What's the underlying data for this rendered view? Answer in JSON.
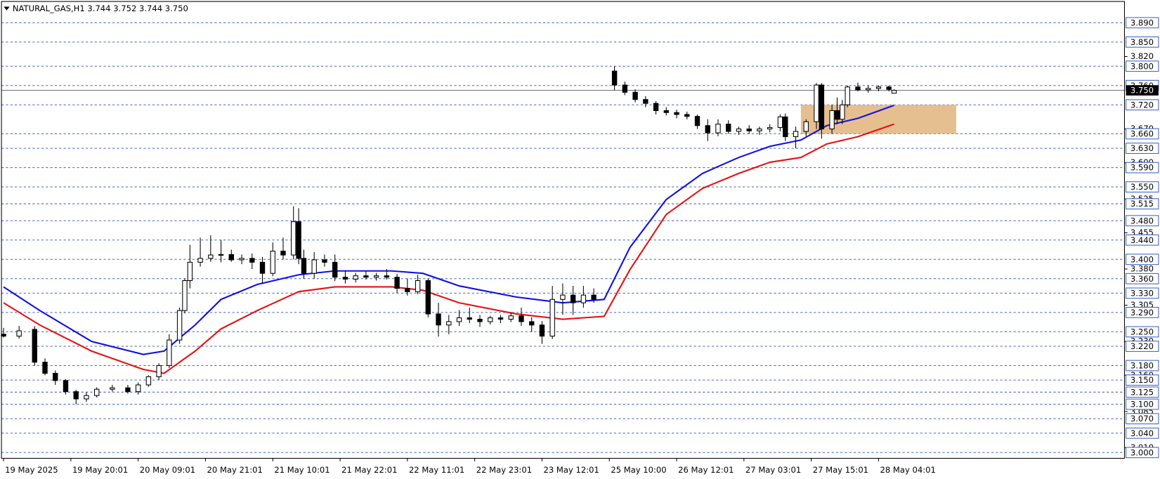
{
  "chart_data": {
    "type": "candlestick",
    "title": "NATURAL_GAS,H1  3.744 3.752 3.744 3.750",
    "xlim": [
      -0.4,
      216.5
    ],
    "ylim": [
      2.988,
      3.934
    ],
    "xticks": [
      {
        "value": 0,
        "label": "19 May 2025"
      },
      {
        "value": 13,
        "label": "19 May 20:01"
      },
      {
        "value": 26,
        "label": "20 May 09:01"
      },
      {
        "value": 39,
        "label": "20 May 21:01"
      },
      {
        "value": 52,
        "label": "21 May 10:01"
      },
      {
        "value": 65,
        "label": "21 May 22:01"
      },
      {
        "value": 78,
        "label": "22 May 11:01"
      },
      {
        "value": 91,
        "label": "22 May 23:01"
      },
      {
        "value": 104,
        "label": "23 May 12:01"
      },
      {
        "value": 117,
        "label": "25 May 10:00"
      },
      {
        "value": 130,
        "label": "26 May 12:01"
      },
      {
        "value": 143,
        "label": "27 May 03:01"
      },
      {
        "value": 156,
        "label": "27 May 15:01"
      },
      {
        "value": 169,
        "label": "28 May 04:01"
      }
    ],
    "yticks": [
      {
        "value": 3.82,
        "label": "3.820"
      },
      {
        "value": 3.67,
        "label": "3.670"
      },
      {
        "value": 3.6,
        "label": "3.600"
      },
      {
        "value": 3.525,
        "label": "3.525"
      },
      {
        "value": 3.455,
        "label": "3.455"
      },
      {
        "value": 3.38,
        "label": "3.380"
      },
      {
        "value": 3.305,
        "label": "3.305"
      },
      {
        "value": 3.23,
        "label": "3.230"
      },
      {
        "value": 3.16,
        "label": "3.160"
      },
      {
        "value": 3.085,
        "label": "3.085"
      },
      {
        "value": 3.01,
        "label": "3.010"
      }
    ],
    "levels": [
      {
        "value": 3.89,
        "label": "3.890"
      },
      {
        "value": 3.85,
        "label": "3.850"
      },
      {
        "value": 3.8,
        "label": "3.800"
      },
      {
        "value": 3.76,
        "label": "3.760"
      },
      {
        "value": 3.72,
        "label": "3.720"
      },
      {
        "value": 3.66,
        "label": "3.660"
      },
      {
        "value": 3.63,
        "label": "3.630"
      },
      {
        "value": 3.59,
        "label": "3.590"
      },
      {
        "value": 3.55,
        "label": "3.550"
      },
      {
        "value": 3.515,
        "label": "3.515"
      },
      {
        "value": 3.48,
        "label": "3.480"
      },
      {
        "value": 3.44,
        "label": "3.440"
      },
      {
        "value": 3.4,
        "label": "3.400"
      },
      {
        "value": 3.36,
        "label": "3.360"
      },
      {
        "value": 3.33,
        "label": "3.330"
      },
      {
        "value": 3.29,
        "label": "3.290"
      },
      {
        "value": 3.25,
        "label": "3.250"
      },
      {
        "value": 3.22,
        "label": "3.220"
      },
      {
        "value": 3.18,
        "label": "3.180"
      },
      {
        "value": 3.15,
        "label": "3.150"
      },
      {
        "value": 3.125,
        "label": "3.125"
      },
      {
        "value": 3.1,
        "label": "3.100"
      },
      {
        "value": 3.07,
        "label": "3.070"
      },
      {
        "value": 3.04,
        "label": "3.040"
      },
      {
        "value": 3.0,
        "label": "3.000"
      }
    ],
    "current_price": {
      "value": 3.75,
      "label": "3.750"
    },
    "zone": {
      "x": [
        154,
        184
      ],
      "y": [
        3.66,
        3.72
      ],
      "color": "#e2b47c"
    },
    "candles": {
      "x": [
        0,
        3,
        6,
        8,
        10,
        12,
        14,
        16,
        18,
        21,
        24,
        26,
        28,
        30,
        32,
        34,
        35,
        36,
        38,
        40,
        42,
        44,
        46,
        48,
        50,
        52,
        54,
        56,
        57,
        58,
        60,
        62,
        64,
        66,
        68,
        70,
        72,
        74,
        76,
        78,
        80,
        82,
        84,
        86,
        88,
        90,
        92,
        94,
        96,
        98,
        100,
        102,
        104,
        106,
        108,
        110,
        112,
        114,
        118,
        120,
        122,
        124,
        126,
        128,
        130,
        132,
        134,
        136,
        138,
        140,
        142,
        144,
        146,
        148,
        150,
        151,
        153,
        155,
        157,
        158,
        160,
        161,
        162,
        163,
        165,
        167,
        169,
        171,
        172
      ],
      "open": [
        3.245,
        3.241,
        3.255,
        3.187,
        3.164,
        3.149,
        3.126,
        3.111,
        3.118,
        3.131,
        3.134,
        3.126,
        3.14,
        3.157,
        3.18,
        3.233,
        3.294,
        3.356,
        3.394,
        3.402,
        3.409,
        3.41,
        3.399,
        3.402,
        3.394,
        3.371,
        3.417,
        3.409,
        3.478,
        3.402,
        3.371,
        3.399,
        3.394,
        3.363,
        3.359,
        3.366,
        3.363,
        3.366,
        3.363,
        3.34,
        3.333,
        3.356,
        3.287,
        3.264,
        3.271,
        3.279,
        3.276,
        3.271,
        3.279,
        3.276,
        3.283,
        3.271,
        3.264,
        3.241,
        3.317,
        3.326,
        3.31,
        3.326,
        3.79,
        3.761,
        3.746,
        3.731,
        3.723,
        3.708,
        3.704,
        3.7,
        3.696,
        3.677,
        3.662,
        3.68,
        3.665,
        3.67,
        3.666,
        3.67,
        3.673,
        3.695,
        3.654,
        3.665,
        3.685,
        3.761,
        3.67,
        3.708,
        3.69,
        3.72,
        3.757,
        3.751,
        3.754,
        3.757,
        3.744
      ],
      "high": [
        3.258,
        3.262,
        3.262,
        3.195,
        3.17,
        3.152,
        3.13,
        3.125,
        3.135,
        3.14,
        3.14,
        3.145,
        3.16,
        3.185,
        3.245,
        3.3,
        3.36,
        3.43,
        3.445,
        3.45,
        3.44,
        3.42,
        3.41,
        3.412,
        3.405,
        3.435,
        3.445,
        3.51,
        3.506,
        3.42,
        3.415,
        3.41,
        3.41,
        3.375,
        3.372,
        3.375,
        3.372,
        3.38,
        3.37,
        3.36,
        3.368,
        3.36,
        3.31,
        3.285,
        3.295,
        3.3,
        3.285,
        3.283,
        3.285,
        3.29,
        3.3,
        3.28,
        3.272,
        3.345,
        3.35,
        3.345,
        3.345,
        3.34,
        3.8,
        3.768,
        3.752,
        3.738,
        3.728,
        3.715,
        3.71,
        3.706,
        3.7,
        3.69,
        3.69,
        3.688,
        3.675,
        3.678,
        3.675,
        3.68,
        3.7,
        3.702,
        3.675,
        3.69,
        3.765,
        3.765,
        3.72,
        3.735,
        3.73,
        3.76,
        3.766,
        3.76,
        3.76,
        3.76,
        3.752
      ],
      "low": [
        3.238,
        3.236,
        3.18,
        3.16,
        3.14,
        3.12,
        3.1,
        3.105,
        3.114,
        3.126,
        3.122,
        3.12,
        3.136,
        3.15,
        3.175,
        3.225,
        3.288,
        3.34,
        3.385,
        3.395,
        3.394,
        3.395,
        3.39,
        3.38,
        3.35,
        3.365,
        3.4,
        3.4,
        3.39,
        3.36,
        3.36,
        3.385,
        3.355,
        3.35,
        3.352,
        3.358,
        3.356,
        3.358,
        3.33,
        3.325,
        3.328,
        3.28,
        3.24,
        3.245,
        3.262,
        3.268,
        3.26,
        3.265,
        3.268,
        3.27,
        3.262,
        3.25,
        3.225,
        3.235,
        3.285,
        3.285,
        3.3,
        3.31,
        3.75,
        3.74,
        3.725,
        3.715,
        3.7,
        3.698,
        3.692,
        3.69,
        3.67,
        3.645,
        3.655,
        3.66,
        3.658,
        3.66,
        3.658,
        3.663,
        3.665,
        3.645,
        3.63,
        3.655,
        3.67,
        3.65,
        3.66,
        3.68,
        3.68,
        3.715,
        3.748,
        3.745,
        3.748,
        3.748,
        3.744
      ],
      "close": [
        3.241,
        3.252,
        3.187,
        3.164,
        3.149,
        3.126,
        3.111,
        3.118,
        3.131,
        3.134,
        3.126,
        3.14,
        3.157,
        3.18,
        3.233,
        3.294,
        3.356,
        3.394,
        3.402,
        3.409,
        3.41,
        3.399,
        3.402,
        3.394,
        3.371,
        3.417,
        3.409,
        3.478,
        3.402,
        3.371,
        3.399,
        3.394,
        3.363,
        3.359,
        3.366,
        3.363,
        3.366,
        3.363,
        3.34,
        3.333,
        3.356,
        3.287,
        3.264,
        3.271,
        3.279,
        3.276,
        3.271,
        3.279,
        3.276,
        3.283,
        3.271,
        3.264,
        3.241,
        3.317,
        3.326,
        3.31,
        3.326,
        3.317,
        3.761,
        3.746,
        3.731,
        3.723,
        3.708,
        3.704,
        3.7,
        3.696,
        3.677,
        3.662,
        3.68,
        3.665,
        3.67,
        3.666,
        3.67,
        3.673,
        3.695,
        3.654,
        3.665,
        3.685,
        3.761,
        3.67,
        3.708,
        3.69,
        3.72,
        3.757,
        3.751,
        3.754,
        3.757,
        3.752,
        3.75
      ]
    },
    "lines": [
      {
        "color": "#1010e8",
        "x": [
          0,
          7,
          17,
          27,
          31,
          37,
          42,
          49,
          57,
          64,
          75,
          81,
          88,
          99,
          108,
          116,
          121,
          128,
          135,
          142,
          148,
          154,
          159,
          165,
          172
        ],
        "values": [
          3.343,
          3.294,
          3.23,
          3.203,
          3.21,
          3.264,
          3.317,
          3.348,
          3.368,
          3.376,
          3.376,
          3.371,
          3.345,
          3.322,
          3.31,
          3.317,
          3.425,
          3.524,
          3.578,
          3.611,
          3.634,
          3.647,
          3.677,
          3.692,
          3.719
        ]
      },
      {
        "color": "#e81010",
        "x": [
          0,
          7,
          17,
          27,
          31,
          37,
          42,
          49,
          57,
          64,
          75,
          81,
          88,
          99,
          108,
          116,
          121,
          128,
          135,
          142,
          148,
          154,
          159,
          165,
          172
        ],
        "values": [
          3.31,
          3.264,
          3.21,
          3.172,
          3.164,
          3.21,
          3.256,
          3.294,
          3.333,
          3.343,
          3.343,
          3.336,
          3.31,
          3.287,
          3.276,
          3.282,
          3.379,
          3.493,
          3.547,
          3.578,
          3.601,
          3.611,
          3.639,
          3.654,
          3.68
        ]
      }
    ]
  }
}
